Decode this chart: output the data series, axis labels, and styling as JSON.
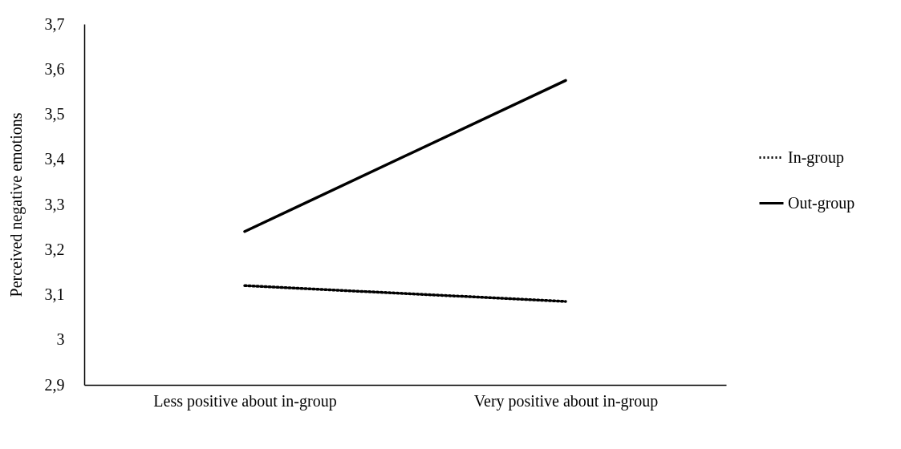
{
  "chart_data": {
    "type": "line",
    "ylabel": "Perceived negative emotions",
    "categories": [
      "Less positive about in-group",
      "Very positive about in-group"
    ],
    "series": [
      {
        "name": "In-group",
        "color": "#000000",
        "line_style": "dotted",
        "values": [
          3.12,
          3.085
        ]
      },
      {
        "name": "Out-group",
        "color": "#000000",
        "line_style": "solid",
        "values": [
          3.24,
          3.575
        ]
      }
    ],
    "ylim": [
      2.9,
      3.7
    ],
    "yticks": [
      {
        "value": 2.9,
        "label": "2,9"
      },
      {
        "value": 3.0,
        "label": "3"
      },
      {
        "value": 3.1,
        "label": "3,1"
      },
      {
        "value": 3.2,
        "label": "3,2"
      },
      {
        "value": 3.3,
        "label": "3,3"
      },
      {
        "value": 3.4,
        "label": "3,4"
      },
      {
        "value": 3.5,
        "label": "3,5"
      },
      {
        "value": 3.6,
        "label": "3,6"
      },
      {
        "value": 3.7,
        "label": "3,7"
      }
    ],
    "grid": false,
    "legend": "right",
    "marker": "none"
  }
}
